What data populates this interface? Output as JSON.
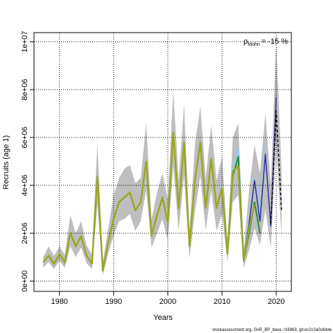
{
  "chart_data": {
    "type": "line",
    "x_label": "Years",
    "y_label": "Recruits (age 1)",
    "annotation": {
      "symbol": "ρ",
      "subscript": "Mohn",
      "text": "= -15 %"
    },
    "footer": "stockassessment.org, GoR_BP_base, r16963, git:ec2c2a0c6dde",
    "x": [
      1977,
      1978,
      1979,
      1980,
      1981,
      1982,
      1983,
      1984,
      1985,
      1986,
      1987,
      1988,
      1989,
      1990,
      1991,
      1992,
      1993,
      1994,
      1995,
      1996,
      1997,
      1998,
      1999,
      2000,
      2001,
      2002,
      2003,
      2004,
      2005,
      2006,
      2007,
      2008,
      2009,
      2010,
      2011,
      2012,
      2013,
      2014,
      2015,
      2016,
      2017,
      2018,
      2019,
      2020,
      2021
    ],
    "xlim": [
      1975.3,
      2022.8
    ],
    "xticks": [
      1980,
      1990,
      2000,
      2010,
      2020
    ],
    "ylim": [
      -430000,
      10380000
    ],
    "yticks": [
      {
        "value": 0,
        "label": "0e+00"
      },
      {
        "value": 2000000,
        "label": "2e+06"
      },
      {
        "value": 4000000,
        "label": "4e+06"
      },
      {
        "value": 6000000,
        "label": "6e+06"
      },
      {
        "value": 8000000,
        "label": "8e+06"
      },
      {
        "value": 10000000,
        "label": "1e+07"
      }
    ],
    "grid": true,
    "band": {
      "color": "#bebebe",
      "lower": [
        550000,
        800000,
        500000,
        850000,
        550000,
        1450000,
        1000000,
        1400000,
        750000,
        500000,
        3200000,
        250000,
        1150000,
        1900000,
        2500000,
        2600000,
        2800000,
        2100000,
        2500000,
        3800000,
        1400000,
        2000000,
        2600000,
        1700000,
        4800000,
        2100000,
        4400000,
        950000,
        2900000,
        4400000,
        2100000,
        3800000,
        2100000,
        2800000,
        800000,
        3300000,
        3600000,
        550000,
        1300000,
        2200000,
        1500000,
        3000000,
        1400000,
        5600000,
        1800000
      ],
      "upper": [
        1000000,
        1450000,
        1050000,
        1450000,
        1100000,
        2750000,
        2000000,
        2500000,
        1500000,
        1100000,
        5800000,
        800000,
        2200000,
        3600000,
        4300000,
        4700000,
        4850000,
        4100000,
        4300000,
        6600000,
        2600000,
        3700000,
        4500000,
        3400000,
        8000000,
        4200000,
        7400000,
        2100000,
        5700000,
        7300000,
        4300000,
        6500000,
        4200000,
        5200000,
        1700000,
        6000000,
        6600000,
        1300000,
        3800000,
        5700000,
        4500000,
        7000000,
        4000000,
        10000000,
        4600000
      ]
    },
    "series": [
      {
        "color": "#87cefa",
        "width": 1.5,
        "dash": false,
        "values": [
          null,
          null,
          null,
          null,
          null,
          null,
          null,
          null,
          null,
          null,
          null,
          null,
          null,
          null,
          null,
          null,
          null,
          null,
          null,
          null,
          null,
          null,
          null,
          null,
          null,
          null,
          null,
          null,
          null,
          null,
          null,
          null,
          null,
          4000000,
          1200000,
          4700000,
          5500000,
          900000,
          2500000,
          4300000,
          2700000,
          5600000,
          null,
          null,
          null
        ]
      },
      {
        "color": "#2e2ea0",
        "width": 1.5,
        "dash": false,
        "values": [
          null,
          null,
          null,
          null,
          null,
          null,
          null,
          null,
          null,
          null,
          null,
          null,
          null,
          null,
          null,
          null,
          null,
          null,
          null,
          null,
          null,
          null,
          null,
          null,
          null,
          null,
          null,
          null,
          null,
          null,
          null,
          null,
          null,
          null,
          null,
          null,
          null,
          900000,
          2400000,
          4200000,
          2500000,
          5300000,
          2300000,
          7700000,
          null
        ]
      },
      {
        "color": "#1e8c3c",
        "width": 2,
        "dash": false,
        "values": [
          null,
          null,
          null,
          null,
          null,
          null,
          null,
          null,
          null,
          null,
          null,
          null,
          null,
          null,
          null,
          null,
          null,
          null,
          null,
          null,
          null,
          null,
          null,
          null,
          null,
          null,
          null,
          null,
          null,
          null,
          null,
          null,
          null,
          3900000,
          1150000,
          4400000,
          5200000,
          850000,
          2000000,
          3300000,
          2000000,
          null,
          null,
          null,
          null
        ]
      },
      {
        "color": "#9aa624",
        "width": 2.5,
        "dash": false,
        "values": [
          780000,
          1070000,
          720000,
          1130000,
          780000,
          2000000,
          1450000,
          1880000,
          1070000,
          720000,
          4350000,
          430000,
          1600000,
          2600000,
          3300000,
          3500000,
          3700000,
          2950000,
          3300000,
          5000000,
          1900000,
          2750000,
          3500000,
          2450000,
          6200000,
          3050000,
          5800000,
          1450000,
          4200000,
          5800000,
          3050000,
          5100000,
          3050000,
          3900000,
          1150000,
          4600000,
          4800000,
          870000,
          2200000,
          3200000,
          null,
          null,
          null,
          null,
          null
        ]
      },
      {
        "color": "#000000",
        "width": 1.5,
        "dash": true,
        "values": [
          null,
          null,
          null,
          null,
          null,
          null,
          null,
          null,
          null,
          null,
          null,
          null,
          null,
          null,
          null,
          null,
          null,
          null,
          null,
          null,
          null,
          null,
          null,
          null,
          null,
          null,
          null,
          null,
          null,
          null,
          null,
          null,
          null,
          null,
          null,
          null,
          null,
          null,
          null,
          null,
          null,
          null,
          2400000,
          7100000,
          2900000
        ]
      }
    ]
  }
}
